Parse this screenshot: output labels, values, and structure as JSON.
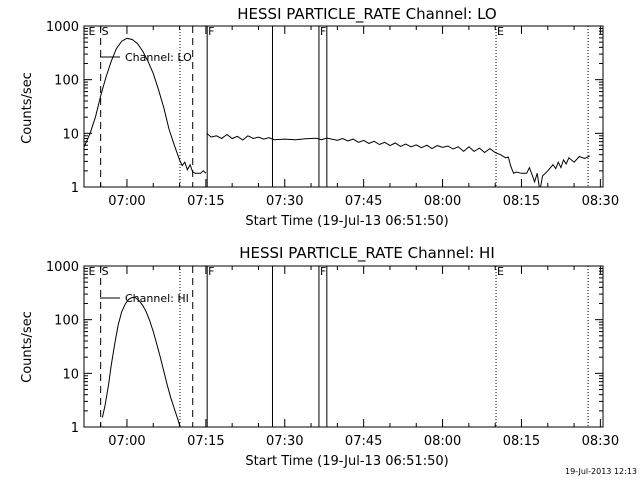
{
  "timestamp": "19-Jul-2013 12:13",
  "chart_data": [
    {
      "type": "line",
      "title": "HESSI PARTICLE_RATE Channel: LO",
      "xlabel": "Start Time (19-Jul-13 06:51:50)",
      "ylabel": "Counts/sec",
      "legend": "Channel: LO",
      "xlim": [
        "06:51:50",
        "08:30:30"
      ],
      "ylim": [
        1,
        1000
      ],
      "yscale": "log",
      "grid": false,
      "xticks": [
        "07:00",
        "07:15",
        "07:30",
        "07:45",
        "08:00",
        "08:15",
        "08:30"
      ],
      "yticks": [
        "1",
        "10",
        "100",
        "1000"
      ],
      "flags": [
        {
          "time": "06:52:30",
          "label": "E"
        },
        {
          "time": "06:55:00",
          "label": "S"
        },
        {
          "time": "07:15:15",
          "label": "F"
        },
        {
          "time": "07:36:30",
          "label": "F"
        },
        {
          "time": "08:10:10",
          "label": "E"
        }
      ],
      "markers": [
        {
          "time": "06:55:00",
          "style": "dashed"
        },
        {
          "time": "07:10:05",
          "style": "dotted"
        },
        {
          "time": "07:12:30",
          "style": "dashed"
        },
        {
          "time": "07:15:15",
          "style": "solid"
        },
        {
          "time": "07:27:40",
          "style": "solid"
        },
        {
          "time": "07:36:30",
          "style": "solid"
        },
        {
          "time": "07:38:00",
          "style": "solid"
        },
        {
          "time": "08:10:10",
          "style": "dotted"
        },
        {
          "time": "08:27:40",
          "style": "dotted"
        }
      ],
      "segments": [
        {
          "name": "Channel: LO",
          "points": [
            [
              "06:51:50",
              5.5
            ],
            [
              "06:53:00",
              10
            ],
            [
              "06:54:00",
              20
            ],
            [
              "06:55:00",
              50
            ],
            [
              "06:56:00",
              110
            ],
            [
              "06:57:00",
              220
            ],
            [
              "06:58:00",
              380
            ],
            [
              "06:59:00",
              520
            ],
            [
              "07:00:00",
              590
            ],
            [
              "07:01:00",
              560
            ],
            [
              "07:02:00",
              470
            ],
            [
              "07:03:00",
              340
            ],
            [
              "07:04:00",
              220
            ],
            [
              "07:05:00",
              130
            ],
            [
              "07:06:00",
              65
            ],
            [
              "07:07:00",
              30
            ],
            [
              "07:08:00",
              12
            ],
            [
              "07:09:00",
              6
            ],
            [
              "07:10:00",
              3.2
            ],
            [
              "07:10:30",
              2.5
            ],
            [
              "07:11:00",
              2.9
            ],
            [
              "07:11:30",
              2.1
            ],
            [
              "07:12:00",
              2.6
            ],
            [
              "07:12:30",
              1.9
            ],
            [
              "07:13:00",
              1.8
            ],
            [
              "07:14:00",
              1.8
            ],
            [
              "07:14:30",
              2.0
            ],
            [
              "07:15:00",
              1.8
            ]
          ]
        },
        {
          "name": "Channel: LO",
          "points": [
            [
              "07:15:10",
              10
            ],
            [
              "07:16:00",
              8.5
            ],
            [
              "07:17:00",
              9
            ],
            [
              "07:18:00",
              8
            ],
            [
              "07:19:00",
              9.5
            ],
            [
              "07:20:00",
              8
            ],
            [
              "07:21:00",
              8.8
            ],
            [
              "07:22:00",
              7.5
            ],
            [
              "07:23:00",
              9
            ],
            [
              "07:24:00",
              8
            ],
            [
              "07:25:00",
              8.5
            ],
            [
              "07:26:00",
              7.8
            ],
            [
              "07:27:00",
              8.3
            ],
            [
              "07:28:00",
              7.6
            ],
            [
              "07:30:00",
              7.8
            ],
            [
              "07:32:00",
              7.6
            ],
            [
              "07:34:00",
              7.9
            ],
            [
              "07:36:00",
              8.1
            ],
            [
              "07:37:00",
              7.6
            ],
            [
              "07:38:00",
              8.2
            ],
            [
              "07:40:00",
              7.4
            ],
            [
              "07:41:00",
              8
            ],
            [
              "07:42:00",
              7.2
            ],
            [
              "07:43:00",
              7.8
            ],
            [
              "07:44:00",
              6.8
            ],
            [
              "07:45:00",
              7.4
            ],
            [
              "07:46:00",
              6.5
            ],
            [
              "07:47:00",
              7.1
            ],
            [
              "07:48:00",
              6.2
            ],
            [
              "07:49:00",
              6.8
            ],
            [
              "07:50:00",
              5.9
            ],
            [
              "07:51:00",
              6.6
            ],
            [
              "07:52:00",
              5.7
            ],
            [
              "07:53:00",
              6.3
            ],
            [
              "07:54:00",
              5.6
            ],
            [
              "07:55:00",
              6.1
            ],
            [
              "07:56:00",
              5.4
            ],
            [
              "07:57:00",
              6
            ],
            [
              "07:58:00",
              5.2
            ],
            [
              "07:59:00",
              5.9
            ],
            [
              "08:00:00",
              5.5
            ],
            [
              "08:01:00",
              5.8
            ],
            [
              "08:02:00",
              5.1
            ],
            [
              "08:03:00",
              5.6
            ],
            [
              "08:04:00",
              4.6
            ],
            [
              "08:05:00",
              5.6
            ],
            [
              "08:06:00",
              4.6
            ],
            [
              "08:07:00",
              5.3
            ],
            [
              "08:08:00",
              4.4
            ],
            [
              "08:09:00",
              5.2
            ],
            [
              "08:10:00",
              4.4
            ],
            [
              "08:11:00",
              4.0
            ],
            [
              "08:12:00",
              3.5
            ],
            [
              "08:12:30",
              3.6
            ],
            [
              "08:13:00",
              2.4
            ],
            [
              "08:13:30",
              1.8
            ],
            [
              "08:14:00",
              1.9
            ],
            [
              "08:15:00",
              1.8
            ],
            [
              "08:16:00",
              1.8
            ],
            [
              "08:16:30",
              2.3
            ],
            [
              "08:17:00",
              1.7
            ],
            [
              "08:17:30",
              1.25
            ],
            [
              "08:18:00",
              1.8
            ],
            [
              "08:18:30",
              0.85
            ],
            [
              "08:19:00",
              1.6
            ],
            [
              "08:20:00",
              2.0
            ],
            [
              "08:21:00",
              2.6
            ],
            [
              "08:21:30",
              2.2
            ],
            [
              "08:22:00",
              2.9
            ],
            [
              "08:22:30",
              2.3
            ],
            [
              "08:23:00",
              3.2
            ],
            [
              "08:23:30",
              2.7
            ],
            [
              "08:24:00",
              3.5
            ],
            [
              "08:25:00",
              2.9
            ],
            [
              "08:26:00",
              3.7
            ],
            [
              "08:27:00",
              3.4
            ],
            [
              "08:28:00",
              3.8
            ]
          ]
        }
      ]
    },
    {
      "type": "line",
      "title": "HESSI PARTICLE_RATE Channel: HI",
      "xlabel": "Start Time (19-Jul-13 06:51:50)",
      "ylabel": "Counts/sec",
      "legend": "Channel: HI",
      "xlim": [
        "06:51:50",
        "08:30:30"
      ],
      "ylim": [
        1,
        1000
      ],
      "yscale": "log",
      "grid": false,
      "xticks": [
        "07:00",
        "07:15",
        "07:30",
        "07:45",
        "08:00",
        "08:15",
        "08:30"
      ],
      "yticks": [
        "1",
        "10",
        "100",
        "1000"
      ],
      "flags": [
        {
          "time": "06:52:30",
          "label": "E"
        },
        {
          "time": "06:55:00",
          "label": "S"
        },
        {
          "time": "07:15:15",
          "label": "F"
        },
        {
          "time": "07:36:30",
          "label": "F"
        },
        {
          "time": "08:10:10",
          "label": "E"
        }
      ],
      "markers": [
        {
          "time": "06:55:00",
          "style": "dashed"
        },
        {
          "time": "07:10:05",
          "style": "dotted"
        },
        {
          "time": "07:12:30",
          "style": "dashed"
        },
        {
          "time": "07:15:15",
          "style": "solid"
        },
        {
          "time": "07:27:40",
          "style": "solid"
        },
        {
          "time": "07:36:30",
          "style": "solid"
        },
        {
          "time": "07:38:00",
          "style": "solid"
        },
        {
          "time": "08:10:10",
          "style": "dotted"
        },
        {
          "time": "08:27:40",
          "style": "dotted"
        }
      ],
      "segments": [
        {
          "name": "Channel: HI",
          "points": [
            [
              "06:55:20",
              1.5
            ],
            [
              "06:55:50",
              2.5
            ],
            [
              "06:56:30",
              6
            ],
            [
              "06:57:00",
              14
            ],
            [
              "06:57:40",
              35
            ],
            [
              "06:58:20",
              80
            ],
            [
              "06:59:00",
              140
            ],
            [
              "06:59:40",
              195
            ],
            [
              "07:00:20",
              240
            ],
            [
              "07:01:00",
              260
            ],
            [
              "07:01:40",
              255
            ],
            [
              "07:02:20",
              225
            ],
            [
              "07:03:00",
              185
            ],
            [
              "07:03:40",
              140
            ],
            [
              "07:04:20",
              95
            ],
            [
              "07:05:00",
              60
            ],
            [
              "07:05:40",
              35
            ],
            [
              "07:06:20",
              20
            ],
            [
              "07:07:00",
              11
            ],
            [
              "07:07:40",
              6
            ],
            [
              "07:08:20",
              3.5
            ],
            [
              "07:09:00",
              2.2
            ],
            [
              "07:09:40",
              1.4
            ],
            [
              "07:10:10",
              0.95
            ]
          ]
        }
      ]
    }
  ]
}
